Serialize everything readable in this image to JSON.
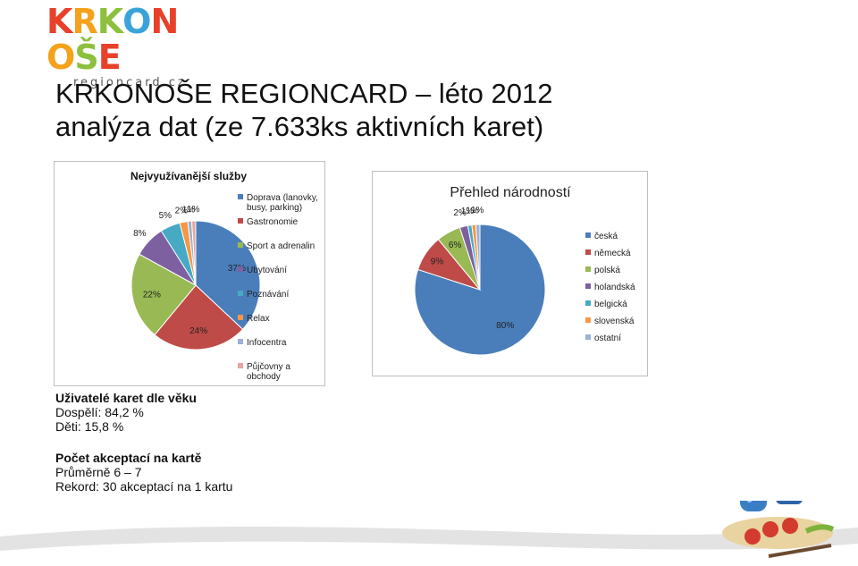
{
  "logo": {
    "text": "KRKONOŠE",
    "subtext": "regioncard.cz",
    "letter_colors": [
      "#e8402a",
      "#f4a21b",
      "#8dc03f",
      "#3aa4d9",
      "#e8402a",
      "#f4a21b",
      "#8dc03f",
      "#e8402a"
    ]
  },
  "title": {
    "line1": "KRKONOŠE REGIONCARD – léto 2012",
    "line2": "analýza dat (ze 7.633ks aktivních karet)"
  },
  "chart_data": [
    {
      "type": "pie",
      "title": "Nejvyužívanější služby",
      "categories": [
        "Doprava (lanovky, busy, parking)",
        "Gastronomie",
        "Sport a adrenalin",
        "Ubytování",
        "Poznávání",
        "Relax",
        "Infocentra",
        "Půjčovny a obchody"
      ],
      "legend_lines": [
        [
          "Doprava (lanovky,",
          "busy, parking)"
        ],
        [
          "Gastronomie"
        ],
        [
          "Sport a adrenalin"
        ],
        [
          "Ubytování"
        ],
        [
          "Poznávání"
        ],
        [
          "Relax"
        ],
        [
          "Infocentra"
        ],
        [
          "Půjčovny a",
          "obchody"
        ]
      ],
      "values": [
        37,
        24,
        22,
        8,
        5,
        2,
        1,
        1
      ],
      "labels": [
        "37%",
        "24%",
        "22%",
        "8%",
        "5%",
        "2%",
        "1%",
        "1%"
      ],
      "colors": [
        "#4a7ebb",
        "#be4b48",
        "#98b954",
        "#7d60a0",
        "#46aac5",
        "#f79646",
        "#99b2d6",
        "#e5a5a4"
      ],
      "legend_position": "right"
    },
    {
      "type": "pie",
      "title": "Přehled národností",
      "categories": [
        "česká",
        "německá",
        "polská",
        "holandská",
        "belgická",
        "slovenská",
        "ostatní"
      ],
      "values": [
        80,
        9,
        6,
        2,
        1,
        1,
        1
      ],
      "labels": [
        "80%",
        "9%",
        "6%",
        "2%",
        "1%",
        "1%",
        "1%"
      ],
      "colors": [
        "#4a7ebb",
        "#be4b48",
        "#98b954",
        "#7d60a0",
        "#46aac5",
        "#f79646",
        "#99b2d6"
      ],
      "legend_position": "right"
    }
  ],
  "age": {
    "heading": "Uživatelé karet dle věku",
    "adults": "Dospělí: 84,2 %",
    "children": "Děti: 15,8 %"
  },
  "acceptance": {
    "heading": "Počet akceptací na kartě",
    "average": "Průměrně 6 – 7",
    "record": "Rekord: 30 akceptací na 1 kartu"
  }
}
